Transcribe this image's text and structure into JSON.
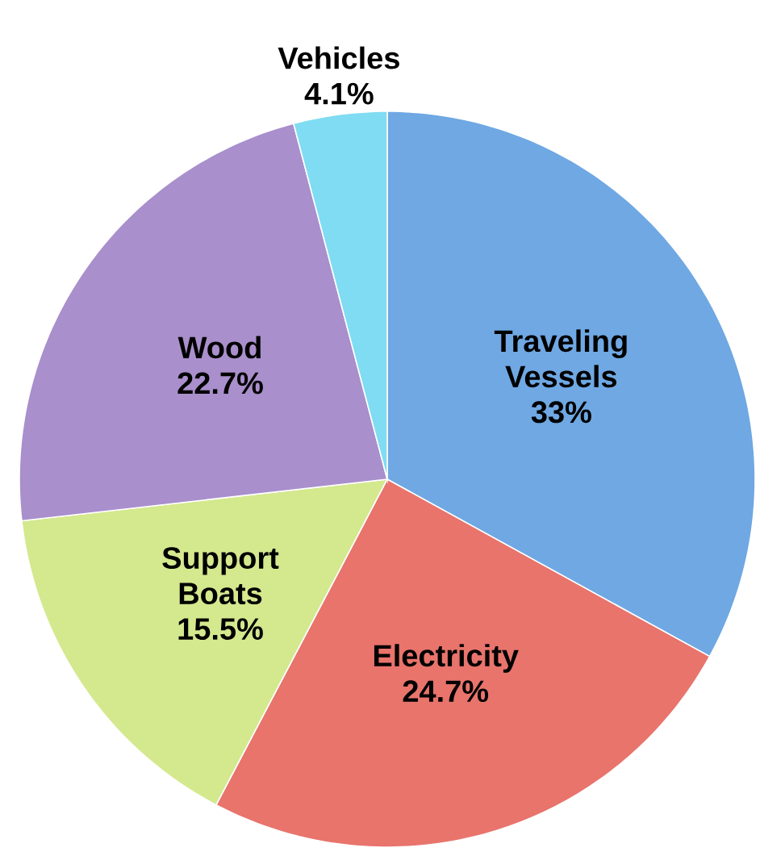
{
  "chart_data": {
    "type": "pie",
    "categories": [
      "Traveling Vessels",
      "Electricity",
      "Support Boats",
      "Wood",
      "Vehicles"
    ],
    "values": [
      33,
      24.7,
      15.5,
      22.7,
      4.1
    ],
    "colors": [
      "#6fa8e3",
      "#e8746c",
      "#d4e88e",
      "#a98fcc",
      "#7fdcf2"
    ],
    "value_labels": [
      "33%",
      "24.7%",
      "15.5%",
      "22.7%",
      "4.1%"
    ]
  }
}
